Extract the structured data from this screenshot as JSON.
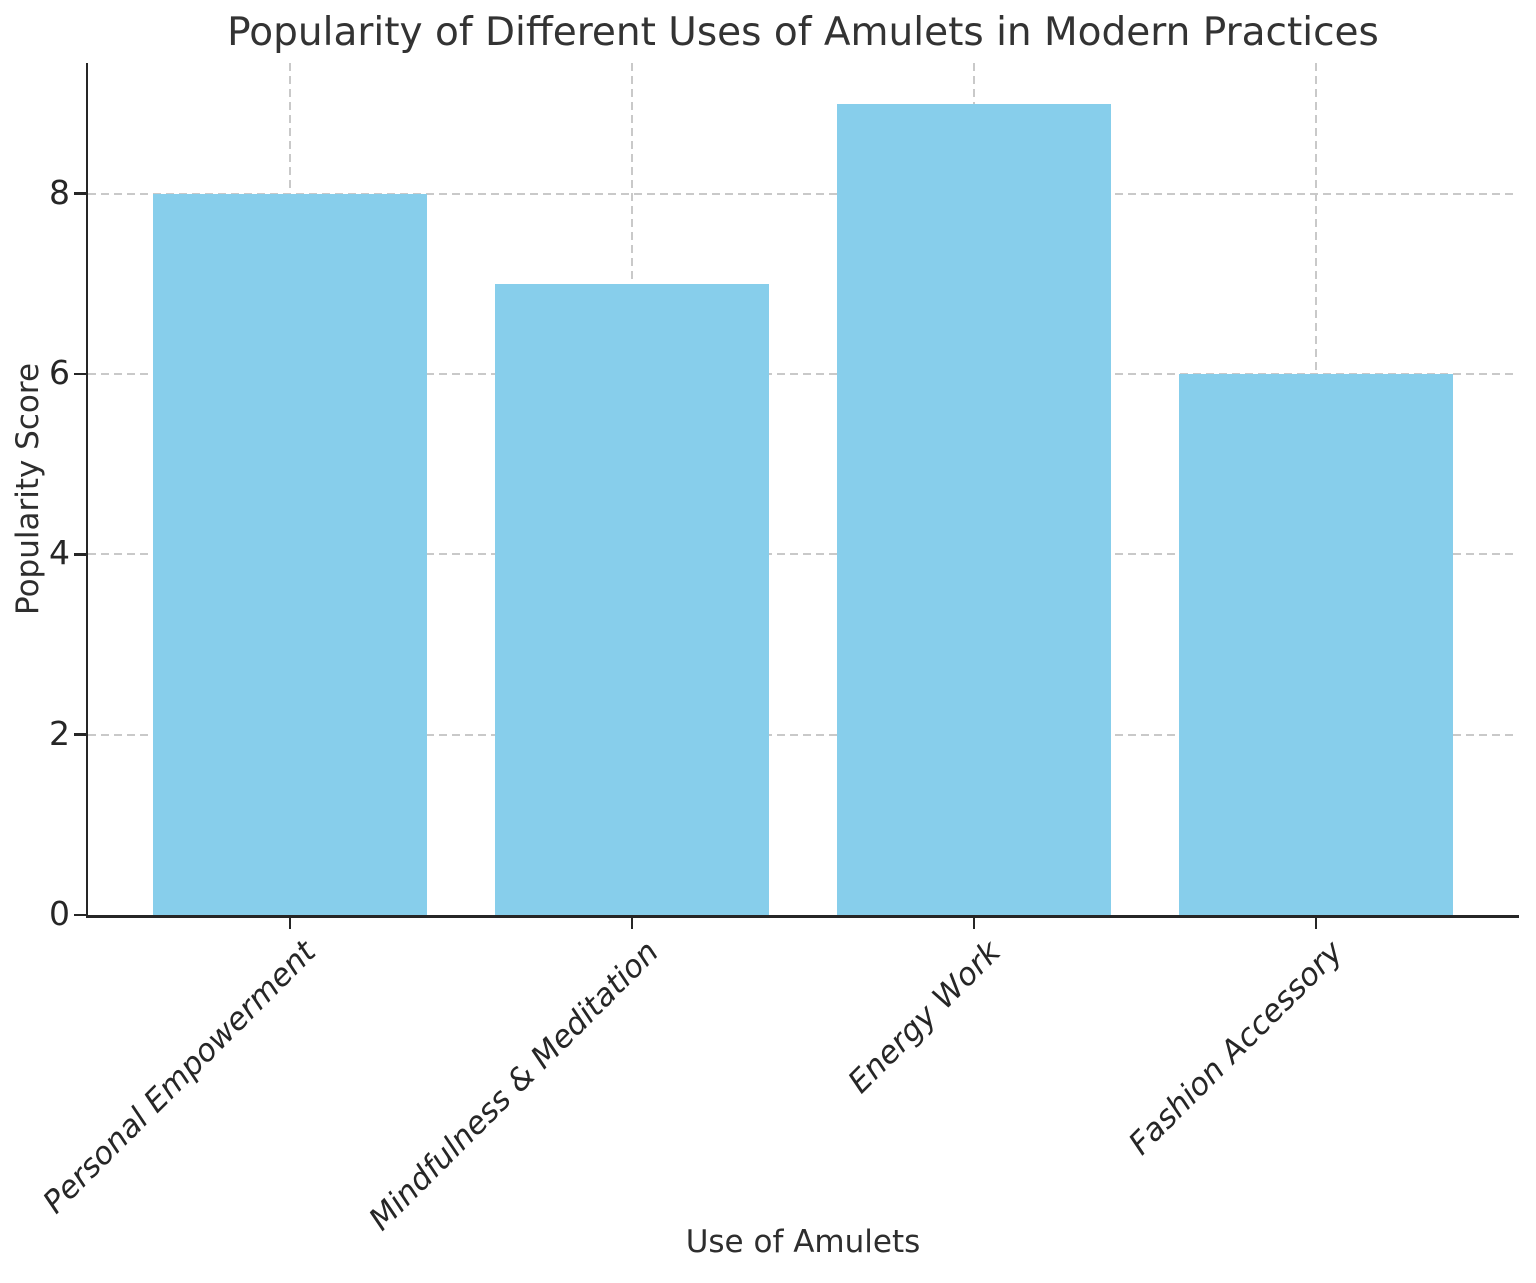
{
  "chart_data": {
    "type": "bar",
    "title": "Popularity of Different Uses of Amulets in Modern Practices",
    "xlabel": "Use of Amulets",
    "ylabel": "Popularity Score",
    "categories": [
      "Personal Empowerment",
      "Mindfulness & Meditation",
      "Energy Work",
      "Fashion Accessory"
    ],
    "values": [
      8,
      7,
      9,
      6
    ],
    "yticks": [
      0,
      2,
      4,
      6,
      8
    ],
    "ylim": [
      0,
      9.45
    ],
    "bar_color": "#87CEEB",
    "grid": true,
    "grid_color": "#c9c9c9",
    "spine_color": "#262626",
    "text_color": "#2e2e2e",
    "legend": null,
    "x_tick_style": "italic, rotated 45deg"
  }
}
